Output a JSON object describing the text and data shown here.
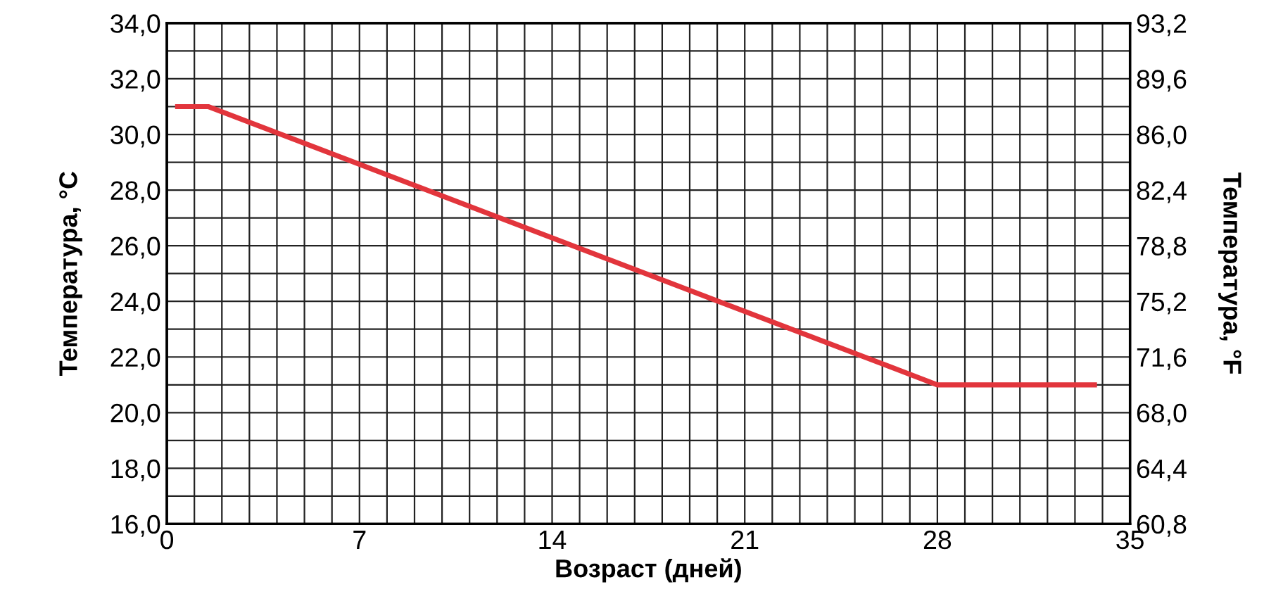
{
  "chart_data": {
    "type": "line",
    "xlabel": "Возраст (дней)",
    "ylabel": "Температура, °C",
    "y2label": "Температура, °F",
    "series": [
      {
        "color": "#e2353c",
        "x": [
          0.3,
          1.5,
          28,
          33.8
        ],
        "values": [
          31.0,
          31.0,
          21.0,
          21.0
        ]
      }
    ],
    "xlim": [
      0,
      35
    ],
    "xticks": [
      0,
      {
        "value": 1,
        "label": null
      },
      {
        "value": 2,
        "label": null
      },
      {
        "value": 3,
        "label": null
      },
      {
        "value": 4,
        "label": null
      },
      {
        "value": 5,
        "label": null
      },
      {
        "value": 6,
        "label": null
      },
      7,
      {
        "value": 8,
        "label": null
      },
      {
        "value": 9,
        "label": null
      },
      {
        "value": 10,
        "label": null
      },
      {
        "value": 11,
        "label": null
      },
      {
        "value": 12,
        "label": null
      },
      {
        "value": 13,
        "label": null
      },
      14,
      {
        "value": 15,
        "label": null
      },
      {
        "value": 16,
        "label": null
      },
      {
        "value": 17,
        "label": null
      },
      {
        "value": 18,
        "label": null
      },
      {
        "value": 19,
        "label": null
      },
      {
        "value": 20,
        "label": null
      },
      21,
      {
        "value": 22,
        "label": null
      },
      {
        "value": 23,
        "label": null
      },
      {
        "value": 24,
        "label": null
      },
      {
        "value": 25,
        "label": null
      },
      {
        "value": 26,
        "label": null
      },
      {
        "value": 27,
        "label": null
      },
      28,
      {
        "value": 29,
        "label": null
      },
      {
        "value": 30,
        "label": null
      },
      {
        "value": 31,
        "label": null
      },
      {
        "value": 32,
        "label": null
      },
      {
        "value": 33,
        "label": null
      },
      {
        "value": 34,
        "label": null
      },
      35
    ],
    "ylim": [
      16,
      34
    ],
    "yticks": [
      {
        "value": 16,
        "label": "16,0"
      },
      {
        "value": 17,
        "label": null
      },
      {
        "value": 18,
        "label": "18,0"
      },
      {
        "value": 19,
        "label": null
      },
      {
        "value": 20,
        "label": "20,0"
      },
      {
        "value": 21,
        "label": null
      },
      {
        "value": 22,
        "label": "22,0"
      },
      {
        "value": 23,
        "label": null
      },
      {
        "value": 24,
        "label": "24,0"
      },
      {
        "value": 25,
        "label": null
      },
      {
        "value": 26,
        "label": "26,0"
      },
      {
        "value": 27,
        "label": null
      },
      {
        "value": 28,
        "label": "28,0"
      },
      {
        "value": 29,
        "label": null
      },
      {
        "value": 30,
        "label": "30,0"
      },
      {
        "value": 31,
        "label": null
      },
      {
        "value": 32,
        "label": "32,0"
      },
      {
        "value": 33,
        "label": null
      },
      {
        "value": 34,
        "label": "34,0"
      }
    ],
    "y2lim": [
      60.8,
      93.2
    ],
    "y2ticks": [
      {
        "value": 60.8,
        "label": "60,8"
      },
      {
        "value": 64.4,
        "label": "64,4"
      },
      {
        "value": 68.0,
        "label": "68,0"
      },
      {
        "value": 71.6,
        "label": "71,6"
      },
      {
        "value": 75.2,
        "label": "75,2"
      },
      {
        "value": 78.8,
        "label": "78,8"
      },
      {
        "value": 82.4,
        "label": "82,4"
      },
      {
        "value": 86.0,
        "label": "86,0"
      },
      {
        "value": 89.6,
        "label": "89,6"
      },
      {
        "value": 93.2,
        "label": "93,2"
      }
    ],
    "grid": true,
    "legend": false,
    "marker": "none",
    "line_style": "solid"
  }
}
